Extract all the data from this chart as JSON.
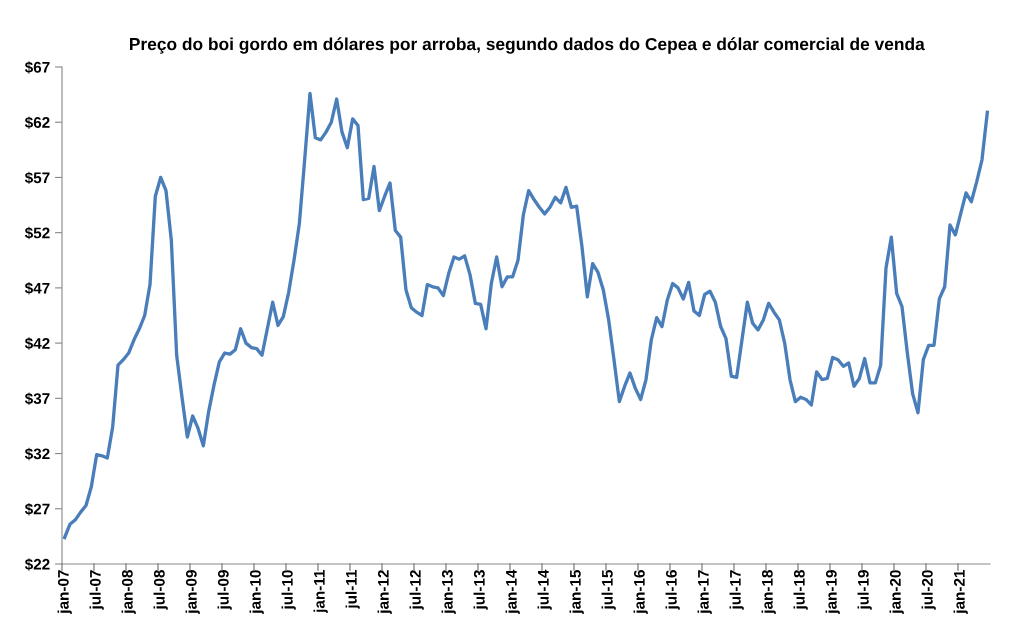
{
  "chart_data": {
    "type": "line",
    "title": "Preço do boi gordo em dólares por arroba, segundo dados do Cepea e dólar comercial de venda",
    "categories": [
      "jan-07",
      null,
      null,
      null,
      null,
      null,
      "jul-07",
      null,
      null,
      null,
      null,
      null,
      "jan-08",
      null,
      null,
      null,
      null,
      null,
      "jul-08",
      null,
      null,
      null,
      null,
      null,
      "jan-09",
      null,
      null,
      null,
      null,
      null,
      "jul-09",
      null,
      null,
      null,
      null,
      null,
      "jan-10",
      null,
      null,
      null,
      null,
      null,
      "jul-10",
      null,
      null,
      null,
      null,
      null,
      "jan-11",
      null,
      null,
      null,
      null,
      null,
      "jul-11",
      null,
      null,
      null,
      null,
      null,
      "jan-12",
      null,
      null,
      null,
      null,
      null,
      "jul-12",
      null,
      null,
      null,
      null,
      null,
      "jan-13",
      null,
      null,
      null,
      null,
      null,
      "jul-13",
      null,
      null,
      null,
      null,
      null,
      "jan-14",
      null,
      null,
      null,
      null,
      null,
      "jul-14",
      null,
      null,
      null,
      null,
      null,
      "jan-15",
      null,
      null,
      null,
      null,
      null,
      "jul-15",
      null,
      null,
      null,
      null,
      null,
      "jan-16",
      null,
      null,
      null,
      null,
      null,
      "jul-16",
      null,
      null,
      null,
      null,
      null,
      "jan-17",
      null,
      null,
      null,
      null,
      null,
      "jul-17",
      null,
      null,
      null,
      null,
      null,
      "jan-18",
      null,
      null,
      null,
      null,
      null,
      "jul-18",
      null,
      null,
      null,
      null,
      null,
      "jan-19",
      null,
      null,
      null,
      null,
      null,
      "jul-19",
      null,
      null,
      null,
      null,
      null,
      "jan-20",
      null,
      null,
      null,
      null,
      null,
      "jul-20",
      null,
      null,
      null,
      null,
      null,
      "jan-21",
      null,
      null,
      null,
      null,
      null
    ],
    "series": [
      {
        "color": "#4a7ebb",
        "values": [
          24.4,
          25.6,
          26.0,
          26.7,
          27.3,
          29.0,
          31.9,
          31.8,
          31.6,
          34.4,
          40.0,
          40.5,
          41.1,
          42.3,
          43.3,
          44.5,
          47.3,
          55.3,
          57.0,
          55.8,
          51.3,
          40.9,
          37.1,
          33.5,
          35.4,
          34.3,
          32.7,
          35.8,
          38.2,
          40.3,
          41.1,
          41.0,
          41.4,
          43.3,
          42.0,
          41.6,
          41.5,
          40.9,
          43.3,
          45.7,
          43.6,
          44.4,
          46.6,
          49.5,
          52.8,
          58.6,
          64.6,
          60.6,
          60.4,
          61.1,
          62.0,
          64.1,
          61.1,
          59.7,
          62.3,
          61.7,
          55.0,
          55.1,
          58.0,
          54.0,
          55.3,
          56.5,
          52.2,
          51.6,
          46.8,
          45.2,
          44.8,
          44.5,
          47.3,
          47.1,
          47.0,
          46.3,
          48.3,
          49.8,
          49.6,
          49.9,
          48.2,
          45.6,
          45.5,
          43.3,
          47.4,
          49.8,
          47.1,
          48.0,
          48.0,
          49.5,
          53.6,
          55.8,
          55.0,
          54.3,
          53.7,
          54.3,
          55.2,
          54.7,
          56.1,
          54.3,
          54.4,
          50.7,
          46.2,
          49.2,
          48.4,
          46.8,
          44.1,
          40.5,
          36.7,
          38.1,
          39.3,
          37.9,
          36.9,
          38.7,
          42.3,
          44.3,
          43.5,
          45.9,
          47.4,
          47.0,
          46.0,
          47.5,
          44.9,
          44.5,
          46.4,
          46.7,
          45.7,
          43.5,
          42.4,
          39.0,
          38.9,
          42.3,
          45.7,
          43.8,
          43.2,
          44.1,
          45.6,
          44.8,
          44.1,
          42.0,
          38.7,
          36.7,
          37.1,
          36.9,
          36.4,
          39.4,
          38.7,
          38.8,
          40.7,
          40.5,
          39.9,
          40.2,
          38.1,
          38.8,
          40.6,
          38.4,
          38.4,
          40.0,
          48.8,
          51.6,
          46.5,
          45.3,
          41.1,
          37.4,
          35.7,
          40.5,
          41.8,
          41.8,
          46.0,
          47.1,
          52.7,
          51.8,
          53.7,
          55.6,
          54.8,
          56.6,
          58.6,
          62.9
        ]
      }
    ],
    "ylim": [
      22,
      67
    ],
    "yticks": [
      {
        "value": 22,
        "label": "$22"
      },
      {
        "value": 27,
        "label": "$27"
      },
      {
        "value": 32,
        "label": "$32"
      },
      {
        "value": 37,
        "label": "$37"
      },
      {
        "value": 42,
        "label": "$42"
      },
      {
        "value": 47,
        "label": "$47"
      },
      {
        "value": 52,
        "label": "$52"
      },
      {
        "value": 57,
        "label": "$57"
      },
      {
        "value": 62,
        "label": "$62"
      },
      {
        "value": 67,
        "label": "$67"
      }
    ],
    "grid": false,
    "marker": "none",
    "line_style": "solid"
  }
}
